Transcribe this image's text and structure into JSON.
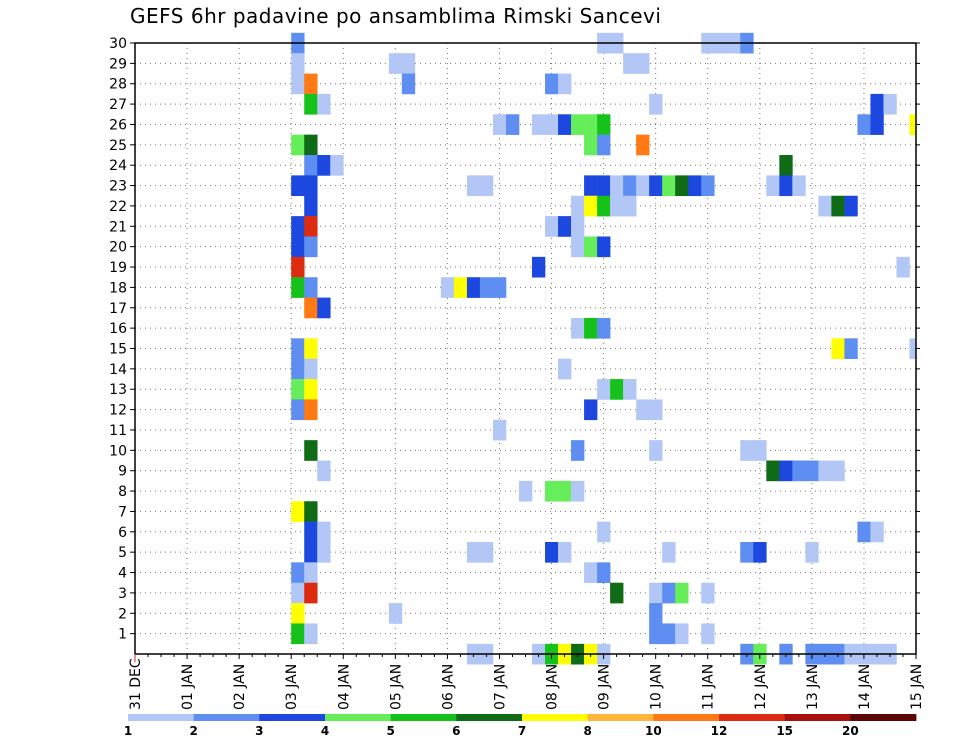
{
  "chart_data": {
    "type": "heatmap",
    "title": "GEFS 6hr padavine po ansamblima Rimski Sancevi",
    "x_tick_labels": [
      "31 DEC",
      "01 JAN",
      "02 JAN",
      "03 JAN",
      "04 JAN",
      "05 JAN",
      "06 JAN",
      "07 JAN",
      "08 JAN",
      "09 JAN",
      "10 JAN",
      "11 JAN",
      "12 JAN",
      "13 JAN",
      "14 JAN",
      "15 JAN"
    ],
    "y_tick_labels": [
      "1",
      "2",
      "3",
      "4",
      "5",
      "6",
      "7",
      "8",
      "9",
      "10",
      "11",
      "12",
      "13",
      "14",
      "15",
      "16",
      "17",
      "18",
      "19",
      "20",
      "21",
      "22",
      "23",
      "24",
      "25",
      "26",
      "27",
      "28",
      "29",
      "30"
    ],
    "x_unit": "6-hour step (4 per day) from 31 DEC",
    "xlim": [
      0,
      60
    ],
    "ylim": [
      0,
      30
    ],
    "grid": true,
    "colorbar": {
      "tick_labels": [
        "1",
        "2",
        "3",
        "4",
        "5",
        "6",
        "7",
        "8",
        "10",
        "12",
        "15",
        "20"
      ],
      "colors": [
        "#b3c7f7",
        "#5e8ef2",
        "#1c48e0",
        "#66ee5a",
        "#16c21a",
        "#0f6b15",
        "#ffff00",
        "#ffb43c",
        "#ff7a14",
        "#dd2b10",
        "#a81010",
        "#5c0606"
      ]
    },
    "cells": [
      [
        12.5,
        30,
        2
      ],
      [
        36,
        30,
        1
      ],
      [
        37,
        30,
        1
      ],
      [
        44,
        30,
        1
      ],
      [
        45,
        30,
        1
      ],
      [
        46,
        30,
        1
      ],
      [
        47,
        30,
        2
      ],
      [
        38,
        29,
        1
      ],
      [
        12.5,
        29,
        1
      ],
      [
        20,
        29,
        1
      ],
      [
        21,
        29,
        1
      ],
      [
        39,
        29,
        1
      ],
      [
        12.5,
        28,
        1
      ],
      [
        13.5,
        28,
        9
      ],
      [
        21,
        28,
        2
      ],
      [
        32,
        28,
        2
      ],
      [
        33,
        28,
        1
      ],
      [
        13.5,
        27,
        5
      ],
      [
        14.5,
        27,
        1
      ],
      [
        40,
        27,
        1
      ],
      [
        57,
        27,
        3
      ],
      [
        58,
        27,
        1
      ],
      [
        28,
        26,
        1
      ],
      [
        29,
        26,
        2
      ],
      [
        31,
        26,
        1
      ],
      [
        32,
        26,
        1
      ],
      [
        33,
        26,
        3
      ],
      [
        34,
        26,
        4
      ],
      [
        35,
        26,
        4
      ],
      [
        36,
        26,
        5
      ],
      [
        56,
        26,
        2
      ],
      [
        57,
        26,
        3
      ],
      [
        60,
        26,
        7
      ],
      [
        12.5,
        25,
        4
      ],
      [
        13.5,
        25,
        6
      ],
      [
        35,
        25,
        4
      ],
      [
        36,
        25,
        2
      ],
      [
        39,
        25,
        9
      ],
      [
        13.5,
        24,
        2
      ],
      [
        14.5,
        24,
        3
      ],
      [
        15.5,
        24,
        1
      ],
      [
        50,
        24,
        6
      ],
      [
        12.5,
        23,
        3
      ],
      [
        13.5,
        23,
        3
      ],
      [
        26,
        23,
        1
      ],
      [
        27,
        23,
        1
      ],
      [
        35,
        23,
        3
      ],
      [
        36,
        23,
        3
      ],
      [
        37,
        23,
        1
      ],
      [
        38,
        23,
        2
      ],
      [
        39,
        23,
        1
      ],
      [
        40,
        23,
        3
      ],
      [
        41,
        23,
        4
      ],
      [
        42,
        23,
        6
      ],
      [
        43,
        23,
        3
      ],
      [
        44,
        23,
        2
      ],
      [
        49,
        23,
        1
      ],
      [
        50,
        23,
        3
      ],
      [
        51,
        23,
        1
      ],
      [
        13.5,
        22,
        3
      ],
      [
        34,
        22,
        1
      ],
      [
        35,
        22,
        7
      ],
      [
        36,
        22,
        5
      ],
      [
        37,
        22,
        1
      ],
      [
        38,
        22,
        1
      ],
      [
        53,
        22,
        1
      ],
      [
        54,
        22,
        6
      ],
      [
        55,
        22,
        3
      ],
      [
        12.5,
        21,
        3
      ],
      [
        13.5,
        21,
        10
      ],
      [
        32,
        21,
        1
      ],
      [
        33,
        21,
        3
      ],
      [
        34,
        21,
        1
      ],
      [
        12.5,
        20,
        3
      ],
      [
        13.5,
        20,
        2
      ],
      [
        34,
        20,
        1
      ],
      [
        35,
        20,
        4
      ],
      [
        36,
        20,
        3
      ],
      [
        12.5,
        19,
        10
      ],
      [
        31,
        19,
        3
      ],
      [
        59,
        19,
        1
      ],
      [
        12.5,
        18,
        5
      ],
      [
        13.5,
        18,
        2
      ],
      [
        24,
        18,
        1
      ],
      [
        25,
        18,
        7
      ],
      [
        26,
        18,
        3
      ],
      [
        27,
        18,
        2
      ],
      [
        28,
        18,
        2
      ],
      [
        13.5,
        17,
        9
      ],
      [
        14.5,
        17,
        3
      ],
      [
        34,
        16,
        1
      ],
      [
        35,
        16,
        5
      ],
      [
        36,
        16,
        2
      ],
      [
        12.5,
        15,
        2
      ],
      [
        13.5,
        15,
        7
      ],
      [
        54,
        15,
        7
      ],
      [
        55,
        15,
        2
      ],
      [
        60,
        15,
        1
      ],
      [
        12.5,
        14,
        2
      ],
      [
        13.5,
        14,
        1
      ],
      [
        33,
        14,
        1
      ],
      [
        12.5,
        13,
        4
      ],
      [
        13.5,
        13,
        7
      ],
      [
        36,
        13,
        1
      ],
      [
        37,
        13,
        5
      ],
      [
        38,
        13,
        1
      ],
      [
        12.5,
        12,
        2
      ],
      [
        13.5,
        12,
        9
      ],
      [
        35,
        12,
        3
      ],
      [
        39,
        12,
        1
      ],
      [
        40,
        12,
        1
      ],
      [
        28,
        11,
        1
      ],
      [
        13.5,
        10,
        6
      ],
      [
        34,
        10,
        2
      ],
      [
        40,
        10,
        1
      ],
      [
        47,
        10,
        1
      ],
      [
        48,
        10,
        1
      ],
      [
        14.5,
        9,
        1
      ],
      [
        49,
        9,
        6
      ],
      [
        50,
        9,
        3
      ],
      [
        51,
        9,
        2
      ],
      [
        52,
        9,
        2
      ],
      [
        53,
        9,
        1
      ],
      [
        54,
        9,
        1
      ],
      [
        30,
        8,
        1
      ],
      [
        32,
        8,
        4
      ],
      [
        33,
        8,
        4
      ],
      [
        34,
        8,
        1
      ],
      [
        12.5,
        7,
        7
      ],
      [
        13.5,
        7,
        6
      ],
      [
        13.5,
        6,
        3
      ],
      [
        14.5,
        6,
        1
      ],
      [
        36,
        6,
        1
      ],
      [
        56,
        6,
        2
      ],
      [
        57,
        6,
        1
      ],
      [
        13.5,
        5,
        3
      ],
      [
        14.5,
        5,
        1
      ],
      [
        26,
        5,
        1
      ],
      [
        27,
        5,
        1
      ],
      [
        32,
        5,
        3
      ],
      [
        33,
        5,
        1
      ],
      [
        41,
        5,
        1
      ],
      [
        47,
        5,
        2
      ],
      [
        48,
        5,
        3
      ],
      [
        52,
        5,
        1
      ],
      [
        12.5,
        4,
        2
      ],
      [
        13.5,
        4,
        1
      ],
      [
        35,
        4,
        1
      ],
      [
        36,
        4,
        2
      ],
      [
        12.5,
        3,
        1
      ],
      [
        13.5,
        3,
        10
      ],
      [
        37,
        3,
        6
      ],
      [
        40,
        3,
        1
      ],
      [
        41,
        3,
        2
      ],
      [
        42,
        3,
        4
      ],
      [
        44,
        3,
        1
      ],
      [
        12.5,
        2,
        7
      ],
      [
        20,
        2,
        1
      ],
      [
        40,
        2,
        2
      ],
      [
        12.5,
        1,
        5
      ],
      [
        13.5,
        1,
        1
      ],
      [
        40,
        1,
        2
      ],
      [
        41,
        1,
        2
      ],
      [
        42,
        1,
        1
      ],
      [
        44,
        1,
        1
      ],
      [
        26,
        0,
        1
      ],
      [
        27,
        0,
        1
      ],
      [
        31,
        0,
        1
      ],
      [
        32,
        0,
        5
      ],
      [
        33,
        0,
        7
      ],
      [
        34,
        0,
        6
      ],
      [
        35,
        0,
        7
      ],
      [
        36,
        0,
        1
      ],
      [
        47,
        0,
        2
      ],
      [
        48,
        0,
        4
      ],
      [
        50,
        0,
        2
      ],
      [
        52,
        0,
        2
      ],
      [
        53,
        0,
        2
      ],
      [
        54,
        0,
        2
      ],
      [
        55,
        0,
        1
      ],
      [
        56,
        0,
        1
      ],
      [
        57,
        0,
        1
      ],
      [
        58,
        0,
        1
      ]
    ]
  }
}
